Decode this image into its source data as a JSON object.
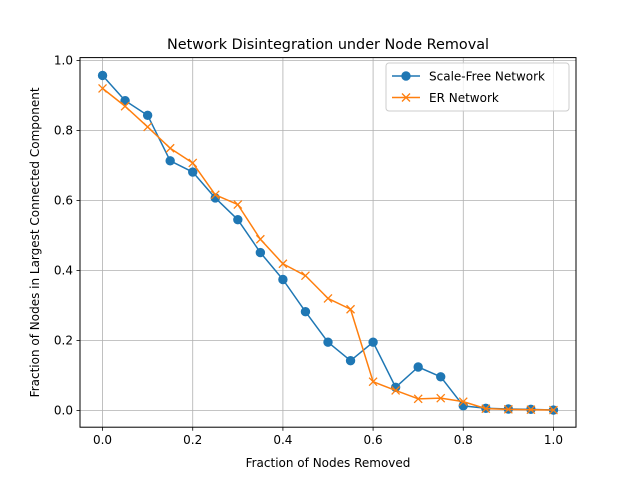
{
  "chart_data": {
    "type": "line",
    "title": "Network Disintegration under Node Removal",
    "xlabel": "Fraction of Nodes Removed",
    "ylabel": "Fraction of Nodes in Largest Connected Component",
    "xlim": [
      -0.05,
      1.05
    ],
    "ylim": [
      -0.048,
      1.008
    ],
    "xticks": [
      0.0,
      0.2,
      0.4,
      0.6,
      0.8,
      1.0
    ],
    "yticks": [
      0.0,
      0.2,
      0.4,
      0.6,
      0.8,
      1.0
    ],
    "xtick_labels": [
      "0.0",
      "0.2",
      "0.4",
      "0.6",
      "0.8",
      "1.0"
    ],
    "ytick_labels": [
      "0.0",
      "0.2",
      "0.4",
      "0.6",
      "0.8",
      "1.0"
    ],
    "grid": true,
    "legend_position": "top-right",
    "x": [
      0.0,
      0.05,
      0.1,
      0.15,
      0.2,
      0.25,
      0.3,
      0.35,
      0.4,
      0.45,
      0.5,
      0.55,
      0.6,
      0.65,
      0.7,
      0.75,
      0.8,
      0.85,
      0.9,
      0.95,
      1.0
    ],
    "series": [
      {
        "name": "Scale-Free Network",
        "color": "#1f77b4",
        "marker": "circle",
        "values": [
          0.957,
          0.885,
          0.843,
          0.713,
          0.681,
          0.607,
          0.545,
          0.451,
          0.374,
          0.282,
          0.195,
          0.142,
          0.195,
          0.066,
          0.124,
          0.096,
          0.013,
          0.006,
          0.004,
          0.003,
          0.001
        ]
      },
      {
        "name": "ER Network",
        "color": "#ff7f0e",
        "marker": "x",
        "values": [
          0.92,
          0.869,
          0.81,
          0.749,
          0.707,
          0.616,
          0.588,
          0.489,
          0.419,
          0.385,
          0.32,
          0.289,
          0.082,
          0.057,
          0.033,
          0.035,
          0.025,
          0.005,
          0.003,
          0.002,
          0.001
        ]
      }
    ]
  }
}
